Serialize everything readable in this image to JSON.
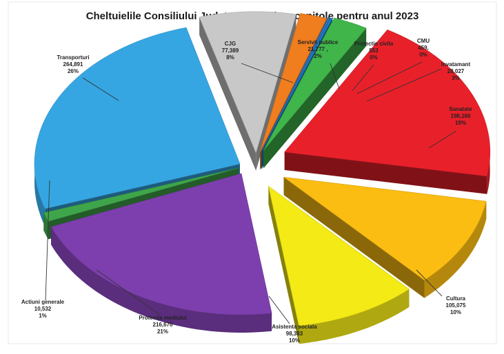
{
  "chart_data": {
    "type": "pie",
    "title": "Cheltuielile Consiliului Judetean Galati pe capitole pentru anul 2023",
    "slices": [
      {
        "name": "CJG",
        "value_text": "77,389",
        "percent_text": "8%",
        "value": 77389,
        "percent": 8,
        "color": "#c8c8c8",
        "exploded": true
      },
      {
        "name": "Servivii publice",
        "value_text": "21,777 ,",
        "percent_text": "2%",
        "value": 21777,
        "percent": 2,
        "color": "#f07d1e",
        "exploded": true
      },
      {
        "name": "Protectie civila",
        "value_text": "553",
        "percent_text": "0%",
        "value": 553,
        "percent": 0,
        "color": "#2e6fb8",
        "exploded": true
      },
      {
        "name": "CMU",
        "value_text": "459,",
        "percent_text": "0%",
        "value": 459,
        "percent": 0,
        "color": "#1d7ac4",
        "exploded": true
      },
      {
        "name": "Invatamant",
        "value_text": "28,027",
        "percent_text": "3%",
        "value": 28027,
        "percent": 3,
        "color": "#3fb54a",
        "exploded": true
      },
      {
        "name": "Sanatate",
        "value_text": "198,166",
        "percent_text": "19%",
        "value": 198166,
        "percent": 19,
        "color": "#e8202a",
        "exploded": true
      },
      {
        "name": "Cultura",
        "value_text": "105,075",
        "percent_text": "10%",
        "value": 105075,
        "percent": 10,
        "color": "#fbbd12",
        "exploded": true
      },
      {
        "name": "Asistenta sociala",
        "value_text": "98,383",
        "percent_text": "10%",
        "value": 98383,
        "percent": 10,
        "color": "#f3ea16",
        "exploded": true
      },
      {
        "name": "Protectia mediului",
        "value_text": "216,670",
        "percent_text": "21%",
        "value": 216670,
        "percent": 21,
        "color": "#7d3fae",
        "exploded": false
      },
      {
        "name": "Actiuni generale",
        "value_text": "10,532",
        "percent_text": "1%",
        "value": 10532,
        "percent": 1,
        "color": "#3fa54a",
        "exploded": false
      },
      {
        "name": "Transporturi",
        "value_text": "264,891",
        "percent_text": "26%",
        "value": 264891,
        "percent": 26,
        "color": "#36a6e3",
        "exploded": false
      }
    ]
  }
}
